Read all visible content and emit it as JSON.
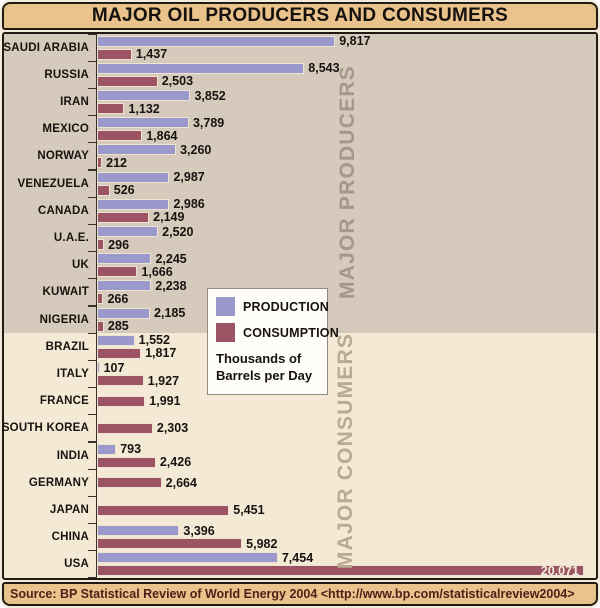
{
  "title": "MAJOR OIL PRODUCERS AND CONSUMERS",
  "legend": {
    "production_label": "PRODUCTION",
    "consumption_label": "CONSUMPTION",
    "units_note": "Thousands of Barrels per Day"
  },
  "bands": {
    "producers_label": "MAJOR PRODUCERS",
    "consumers_label": "MAJOR CONSUMERS"
  },
  "source": {
    "text": "Source: BP Statistical Review of World Energy 2004 <http://www.bp.com/statisticalreview2004>"
  },
  "colors": {
    "production_bar": "#9b98cb",
    "consumption_bar": "#9c5464",
    "producers_band_bg": "#d5cabb",
    "consumers_band_bg": "#f4e9d4",
    "title_bar_bg": "#e9c28c",
    "source_bar_bg": "#e9c28c",
    "band_label_producers": "#a3988a",
    "band_label_consumers": "#b9aa90"
  },
  "chart_data": {
    "type": "bar",
    "orientation": "horizontal",
    "units": "Thousands of Barrels per Day",
    "x_max_for_scale": 20071,
    "categories": [
      "SAUDI ARABIA",
      "RUSSIA",
      "IRAN",
      "MEXICO",
      "NORWAY",
      "VENEZUELA",
      "CANADA",
      "U.A.E.",
      "UK",
      "KUWAIT",
      "NIGERIA",
      "BRAZIL",
      "ITALY",
      "FRANCE",
      "SOUTH KOREA",
      "INDIA",
      "GERMANY",
      "JAPAN",
      "CHINA",
      "USA"
    ],
    "series": [
      {
        "name": "PRODUCTION",
        "color": "#9b98cb",
        "values": [
          9817,
          8543,
          3852,
          3789,
          3260,
          2987,
          2986,
          2520,
          2245,
          2238,
          2185,
          1552,
          107,
          null,
          null,
          793,
          null,
          null,
          3396,
          7454
        ]
      },
      {
        "name": "CONSUMPTION",
        "color": "#9c5464",
        "values": [
          1437,
          2503,
          1132,
          1864,
          212,
          526,
          2149,
          296,
          1666,
          266,
          285,
          1817,
          1927,
          1991,
          2303,
          2426,
          2664,
          5451,
          5982,
          20071
        ]
      }
    ],
    "producer_rows": [
      "SAUDI ARABIA",
      "RUSSIA",
      "IRAN",
      "MEXICO",
      "NORWAY",
      "VENEZUELA",
      "CANADA",
      "U.A.E.",
      "UK",
      "KUWAIT",
      "NIGERIA"
    ],
    "consumer_rows": [
      "BRAZIL",
      "ITALY",
      "FRANCE",
      "SOUTH KOREA",
      "INDIA",
      "GERMANY",
      "JAPAN",
      "CHINA",
      "USA"
    ]
  }
}
